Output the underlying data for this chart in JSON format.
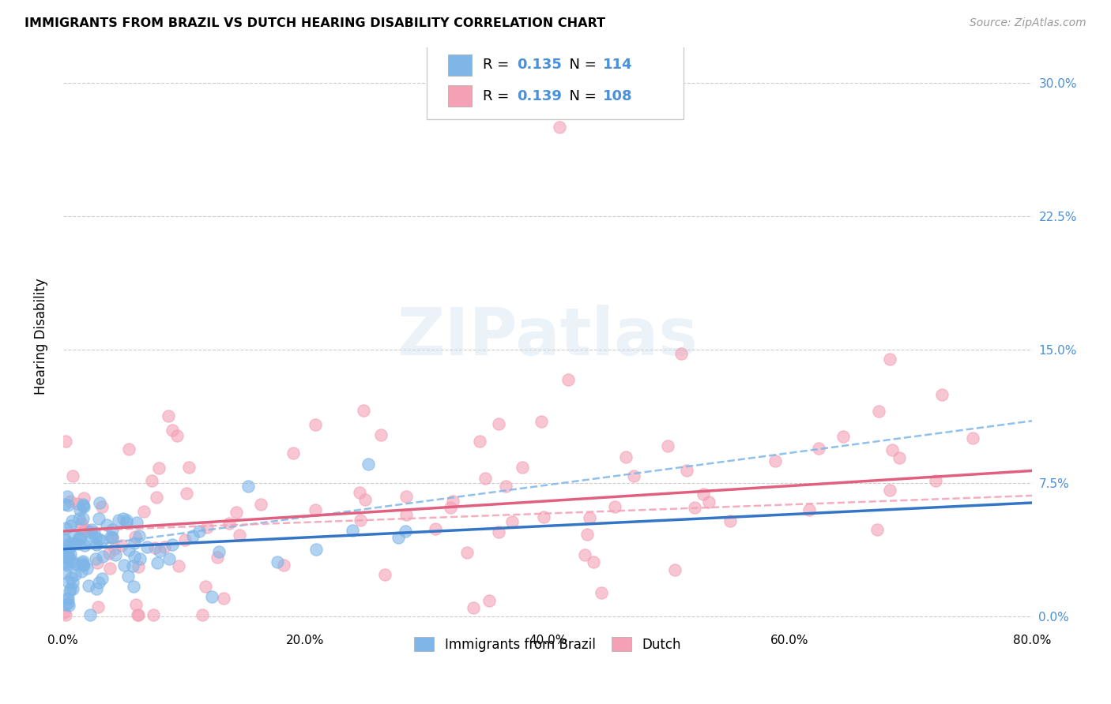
{
  "title": "IMMIGRANTS FROM BRAZIL VS DUTCH HEARING DISABILITY CORRELATION CHART",
  "source": "Source: ZipAtlas.com",
  "ylabel": "Hearing Disability",
  "brazil_color": "#7EB6E8",
  "dutch_color": "#F4A0B5",
  "brazil_line_color": "#3575C5",
  "dutch_line_color": "#E06080",
  "brazil_R": "0.135",
  "brazil_N": "114",
  "dutch_R": "0.139",
  "dutch_N": "108",
  "xlim": [
    0.0,
    0.8
  ],
  "ylim": [
    -0.005,
    0.32
  ],
  "x_tick_vals": [
    0.0,
    0.2,
    0.4,
    0.6,
    0.8
  ],
  "x_tick_labels": [
    "0.0%",
    "20.0%",
    "40.0%",
    "60.0%",
    "80.0%"
  ],
  "y_tick_vals": [
    0.0,
    0.075,
    0.15,
    0.225,
    0.3
  ],
  "y_tick_labels": [
    "0.0%",
    "7.5%",
    "15.0%",
    "22.5%",
    "30.0%"
  ],
  "right_tick_color": "#4A90D9",
  "watermark": "ZIPatlas",
  "brazil_trend": [
    0.038,
    0.064
  ],
  "dutch_trend": [
    0.048,
    0.082
  ],
  "brazil_dashed": [
    0.038,
    0.11
  ],
  "dutch_dashed": [
    0.048,
    0.068
  ]
}
